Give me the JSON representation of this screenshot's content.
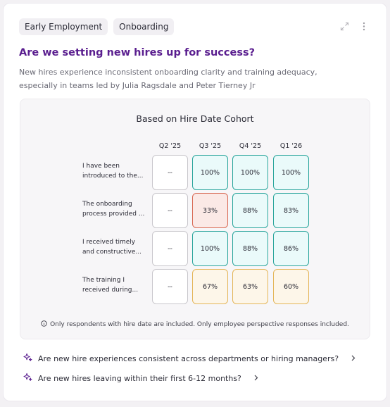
{
  "tags": [
    "Early Employment",
    "Onboarding"
  ],
  "title": "Are we setting new hires up for success?",
  "subtitle": "New hires experience inconsistent onboarding clarity and training adequacy, especially in teams led by Julia Ragsdale and Peter Tierney Jr",
  "panel": {
    "title": "Based on Hire Date Cohort",
    "columns": [
      "Q2 '25",
      "Q3 '25",
      "Q4 '25",
      "Q1 '26"
    ],
    "rows": [
      {
        "label": "I have been introduced to the...",
        "values": [
          "--",
          "100%",
          "100%",
          "100%"
        ],
        "status": [
          "na",
          "good",
          "good",
          "good"
        ]
      },
      {
        "label": "The onboarding process provided ...",
        "values": [
          "--",
          "33%",
          "88%",
          "83%"
        ],
        "status": [
          "na",
          "bad",
          "good",
          "good"
        ]
      },
      {
        "label": "I received timely and constructive...",
        "values": [
          "--",
          "100%",
          "88%",
          "86%"
        ],
        "status": [
          "na",
          "good",
          "good",
          "good"
        ]
      },
      {
        "label": "The training I received during...",
        "values": [
          "--",
          "67%",
          "63%",
          "60%"
        ],
        "status": [
          "na",
          "mid",
          "mid",
          "mid"
        ]
      }
    ],
    "note": "Only respondents with hire date are included. Only employee perspective responses included."
  },
  "questions": [
    "Are new hire experiences consistent across departments or hiring managers?",
    "Are new hires leaving within their first 6-12 months?"
  ],
  "icons": {
    "expand": "expand-icon",
    "more": "more-vertical-icon",
    "info": "info-icon",
    "sparkle": "sparkle-icon",
    "chevron": "chevron-right-icon"
  },
  "colors": {
    "title": "#5a1e8f",
    "good": "#2aa59c",
    "mid": "#e4b65a",
    "bad": "#d86a55"
  }
}
